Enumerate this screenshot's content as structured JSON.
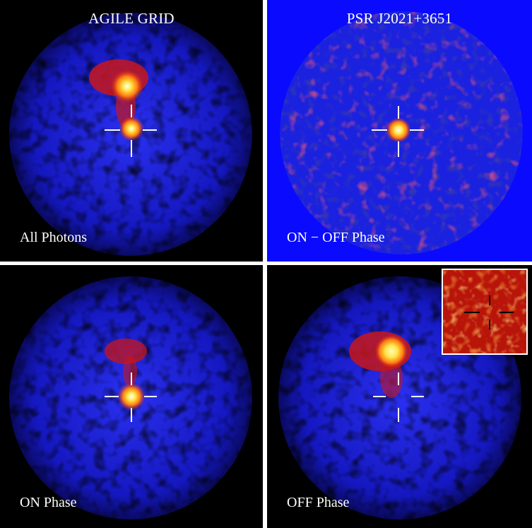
{
  "panels": {
    "top_left": {
      "title": "AGILE GRID",
      "label": "All Photons"
    },
    "top_right": {
      "title": "PSR J2021+3651",
      "label": "ON − OFF Phase"
    },
    "bottom_left": {
      "label": "ON Phase"
    },
    "bottom_right": {
      "label": "OFF Phase"
    }
  },
  "colors": {
    "separator": "#ffffff",
    "background_black": "#000000",
    "background_blue": "#0a0aff",
    "map_blue": "#1a22e0",
    "map_red": "#c8161a",
    "map_yellow": "#ffe84a",
    "crosshair": "#ffffff"
  }
}
